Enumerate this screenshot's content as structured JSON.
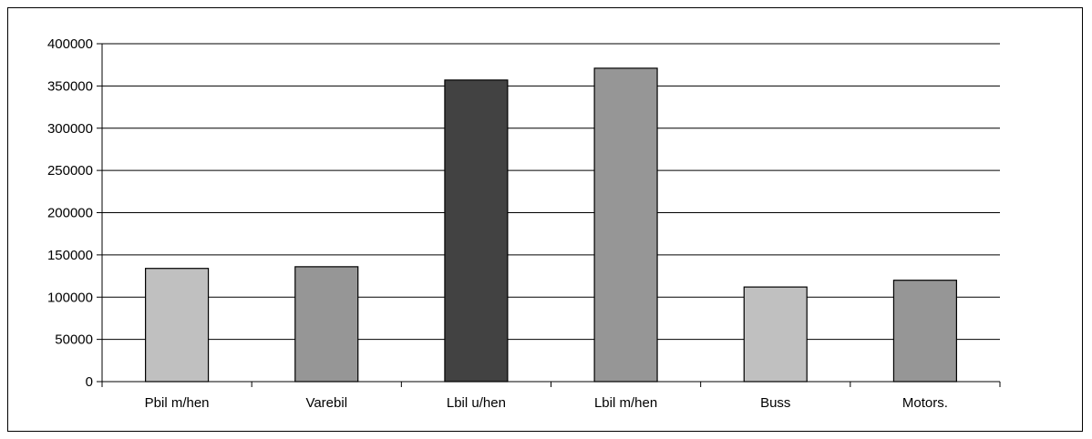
{
  "chart_data": {
    "type": "bar",
    "categories": [
      "Pbil m/hen",
      "Varebil",
      "Lbil u/hen",
      "Lbil m/hen",
      "Buss",
      "Motors."
    ],
    "values": [
      134000,
      136000,
      357000,
      371000,
      112000,
      120000
    ],
    "bar_colors": [
      "#c0c0c0",
      "#969696",
      "#424242",
      "#969696",
      "#c0c0c0",
      "#969696"
    ],
    "ylim": [
      0,
      400000
    ],
    "y_ticks": [
      "0",
      "50000",
      "100000",
      "150000",
      "200000",
      "250000",
      "300000",
      "350000",
      "400000"
    ],
    "grid": true,
    "legend": "none"
  }
}
